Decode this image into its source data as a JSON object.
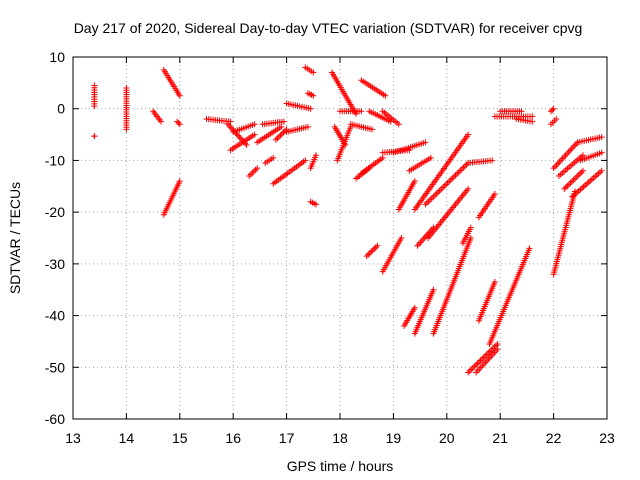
{
  "chart_data": {
    "type": "scatter",
    "title": "Day 217 of 2020, Sidereal Day-to-day VTEC variation (SDTVAR) for receiver cpvg",
    "xlabel": "GPS time / hours",
    "ylabel": "SDTVAR / TECUs",
    "xlim": [
      13,
      23
    ],
    "ylim": [
      -60,
      10
    ],
    "xticks": [
      "13",
      "14",
      "15",
      "16",
      "17",
      "18",
      "19",
      "20",
      "21",
      "22",
      "23"
    ],
    "yticks": [
      "10",
      "0",
      "-10",
      "-20",
      "-30",
      "-40",
      "-50",
      "-60"
    ],
    "xtick_values": [
      13,
      14,
      15,
      16,
      17,
      18,
      19,
      20,
      21,
      22,
      23
    ],
    "ytick_values": [
      10,
      0,
      -10,
      -20,
      -30,
      -40,
      -50,
      -60
    ],
    "grid": true,
    "marker": "+",
    "color": "#ff0000",
    "segments": [
      {
        "x0": 13.4,
        "y0": 4.5,
        "x1": 13.4,
        "y1": 0.5
      },
      {
        "x0": 13.4,
        "y0": -5.3,
        "x1": 13.4,
        "y1": -5.3
      },
      {
        "x0": 14.0,
        "y0": 4.0,
        "x1": 14.0,
        "y1": -4.0
      },
      {
        "x0": 14.5,
        "y0": -0.5,
        "x1": 14.65,
        "y1": -2.5
      },
      {
        "x0": 14.7,
        "y0": 7.5,
        "x1": 15.0,
        "y1": 2.5
      },
      {
        "x0": 14.95,
        "y0": -2.5,
        "x1": 15.0,
        "y1": -3.0
      },
      {
        "x0": 14.7,
        "y0": -20.5,
        "x1": 15.0,
        "y1": -14.0
      },
      {
        "x0": 15.5,
        "y0": -2.0,
        "x1": 15.95,
        "y1": -2.5
      },
      {
        "x0": 15.9,
        "y0": -3.0,
        "x1": 16.25,
        "y1": -7.0
      },
      {
        "x0": 15.95,
        "y0": -8.0,
        "x1": 16.4,
        "y1": -5.0
      },
      {
        "x0": 16.0,
        "y0": -4.5,
        "x1": 16.4,
        "y1": -3.0
      },
      {
        "x0": 16.3,
        "y0": -13.0,
        "x1": 16.45,
        "y1": -11.5
      },
      {
        "x0": 16.45,
        "y0": -6.5,
        "x1": 16.9,
        "y1": -3.5
      },
      {
        "x0": 16.55,
        "y0": -3.0,
        "x1": 16.95,
        "y1": -2.5
      },
      {
        "x0": 16.6,
        "y0": -10.5,
        "x1": 16.75,
        "y1": -9.5
      },
      {
        "x0": 16.8,
        "y0": -6.0,
        "x1": 17.0,
        "y1": -4.0
      },
      {
        "x0": 16.75,
        "y0": -14.5,
        "x1": 17.35,
        "y1": -10.0
      },
      {
        "x0": 17.0,
        "y0": 1.0,
        "x1": 17.45,
        "y1": 0.0
      },
      {
        "x0": 17.0,
        "y0": -4.5,
        "x1": 17.4,
        "y1": -3.5
      },
      {
        "x0": 17.35,
        "y0": 8.0,
        "x1": 17.5,
        "y1": 7.0
      },
      {
        "x0": 17.4,
        "y0": 3.0,
        "x1": 17.5,
        "y1": 2.5
      },
      {
        "x0": 17.45,
        "y0": -11.5,
        "x1": 17.55,
        "y1": -9.0
      },
      {
        "x0": 17.45,
        "y0": -18.0,
        "x1": 17.55,
        "y1": -18.5
      },
      {
        "x0": 17.85,
        "y0": 7.0,
        "x1": 18.3,
        "y1": -1.0
      },
      {
        "x0": 17.9,
        "y0": -3.5,
        "x1": 18.1,
        "y1": -7.0
      },
      {
        "x0": 17.95,
        "y0": -10.0,
        "x1": 18.2,
        "y1": -3.5
      },
      {
        "x0": 18.2,
        "y0": -3.0,
        "x1": 18.6,
        "y1": -4.0
      },
      {
        "x0": 18.0,
        "y0": -0.5,
        "x1": 18.4,
        "y1": -0.5
      },
      {
        "x0": 18.4,
        "y0": 5.5,
        "x1": 18.85,
        "y1": 2.5
      },
      {
        "x0": 18.55,
        "y0": -0.5,
        "x1": 18.95,
        "y1": -2.5
      },
      {
        "x0": 18.8,
        "y0": -0.5,
        "x1": 19.1,
        "y1": -3.0
      },
      {
        "x0": 18.4,
        "y0": -12.5,
        "x1": 18.8,
        "y1": -9.5
      },
      {
        "x0": 18.3,
        "y0": -13.5,
        "x1": 18.55,
        "y1": -11.5
      },
      {
        "x0": 18.5,
        "y0": -28.5,
        "x1": 18.7,
        "y1": -26.5
      },
      {
        "x0": 18.8,
        "y0": -8.5,
        "x1": 19.3,
        "y1": -8.0
      },
      {
        "x0": 19.0,
        "y0": -8.5,
        "x1": 19.6,
        "y1": -6.5
      },
      {
        "x0": 18.8,
        "y0": -31.5,
        "x1": 19.15,
        "y1": -25.0
      },
      {
        "x0": 19.1,
        "y0": -19.5,
        "x1": 19.4,
        "y1": -14.0
      },
      {
        "x0": 19.2,
        "y0": -42.0,
        "x1": 19.4,
        "y1": -38.5
      },
      {
        "x0": 19.3,
        "y0": -12.0,
        "x1": 19.7,
        "y1": -9.5
      },
      {
        "x0": 19.4,
        "y0": -19.5,
        "x1": 20.4,
        "y1": -5.0
      },
      {
        "x0": 19.4,
        "y0": -43.5,
        "x1": 19.75,
        "y1": -35.0
      },
      {
        "x0": 19.45,
        "y0": -26.5,
        "x1": 19.75,
        "y1": -23.0
      },
      {
        "x0": 19.6,
        "y0": -18.5,
        "x1": 20.4,
        "y1": -10.5
      },
      {
        "x0": 20.4,
        "y0": -10.5,
        "x1": 20.85,
        "y1": -10.0
      },
      {
        "x0": 19.65,
        "y0": -25.0,
        "x1": 20.4,
        "y1": -15.5
      },
      {
        "x0": 19.75,
        "y0": -43.5,
        "x1": 20.45,
        "y1": -25.0
      },
      {
        "x0": 20.3,
        "y0": -26.0,
        "x1": 20.45,
        "y1": -23.0
      },
      {
        "x0": 20.6,
        "y0": -21.0,
        "x1": 20.9,
        "y1": -16.5
      },
      {
        "x0": 20.4,
        "y0": -51.0,
        "x1": 20.95,
        "y1": -45.5
      },
      {
        "x0": 20.6,
        "y0": -41.0,
        "x1": 20.9,
        "y1": -33.5
      },
      {
        "x0": 20.55,
        "y0": -51.0,
        "x1": 20.95,
        "y1": -46.5
      },
      {
        "x0": 20.8,
        "y0": -45.5,
        "x1": 21.55,
        "y1": -27.0
      },
      {
        "x0": 20.9,
        "y0": -1.5,
        "x1": 21.6,
        "y1": -1.5
      },
      {
        "x0": 21.0,
        "y0": -0.5,
        "x1": 21.4,
        "y1": -0.5
      },
      {
        "x0": 21.3,
        "y0": -2.0,
        "x1": 21.6,
        "y1": -2.5
      },
      {
        "x0": 21.95,
        "y0": -0.5,
        "x1": 22.0,
        "y1": 0.0
      },
      {
        "x0": 21.95,
        "y0": -3.0,
        "x1": 22.05,
        "y1": -2.0
      },
      {
        "x0": 22.0,
        "y0": -11.5,
        "x1": 22.45,
        "y1": -6.5
      },
      {
        "x0": 22.45,
        "y0": -6.5,
        "x1": 22.9,
        "y1": -5.5
      },
      {
        "x0": 22.1,
        "y0": -13.0,
        "x1": 22.55,
        "y1": -9.0
      },
      {
        "x0": 22.5,
        "y0": -10.0,
        "x1": 22.9,
        "y1": -8.5
      },
      {
        "x0": 22.2,
        "y0": -15.5,
        "x1": 22.55,
        "y1": -12.0
      },
      {
        "x0": 22.35,
        "y0": -17.0,
        "x1": 22.9,
        "y1": -12.0
      },
      {
        "x0": 22.0,
        "y0": -32.0,
        "x1": 22.4,
        "y1": -16.0
      }
    ]
  }
}
